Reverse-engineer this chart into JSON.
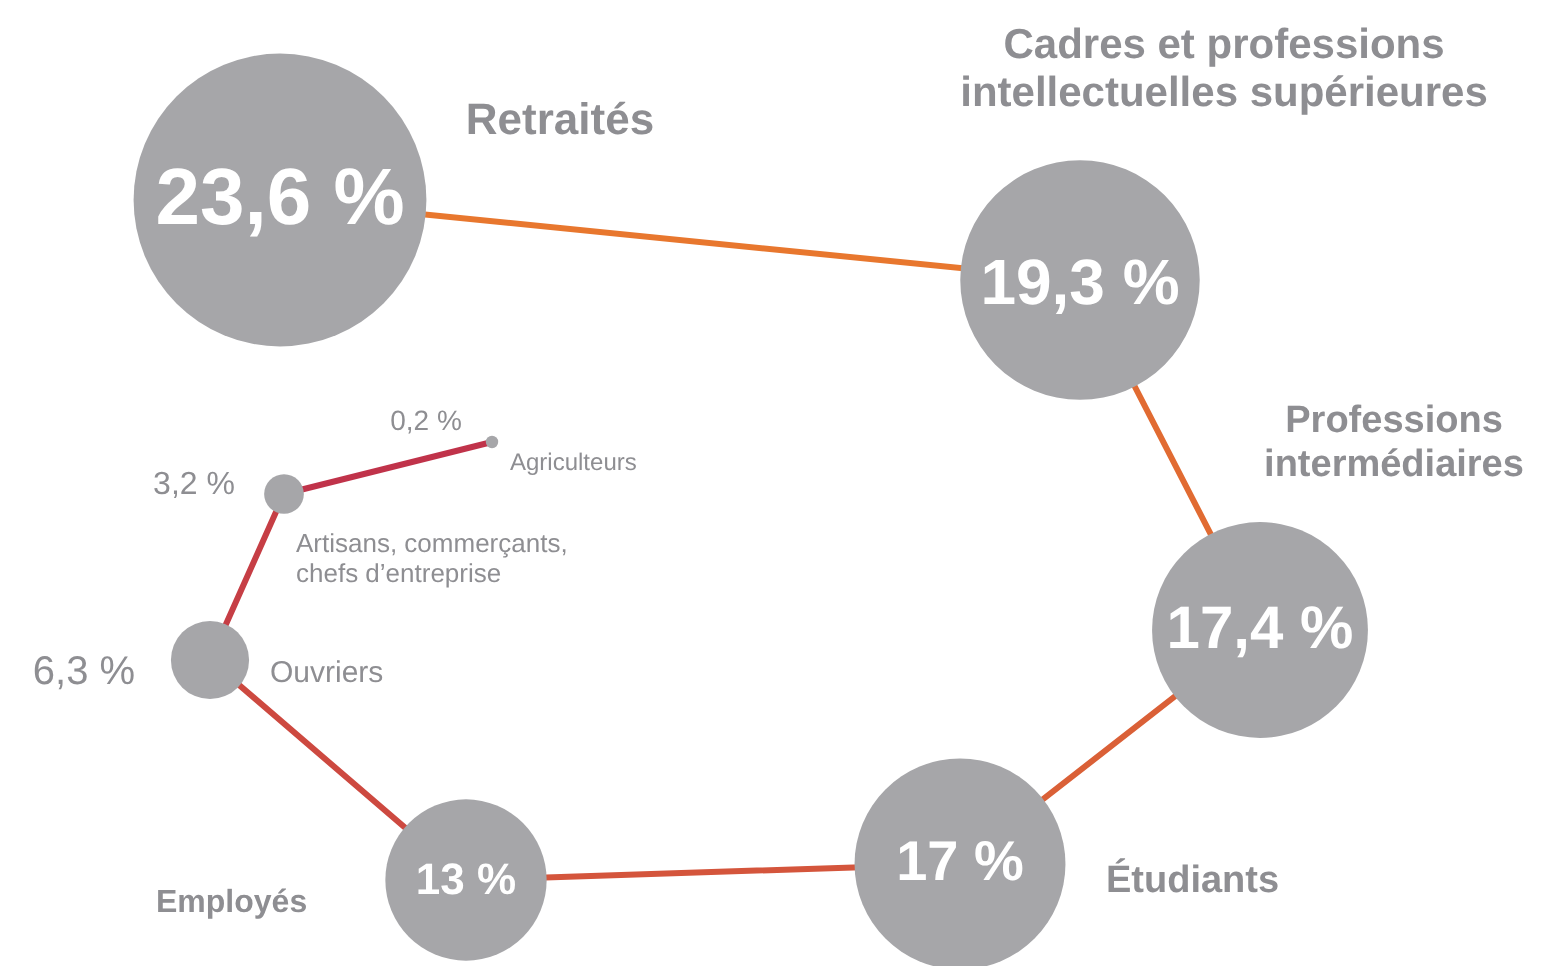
{
  "chart_data": {
    "type": "other",
    "categories": [
      "Agriculteurs",
      "Artisans, commerçants,\nchefs d’entreprise",
      "Ouvriers",
      "Employés",
      "Étudiants",
      "Professions\nintermédiaires",
      "Cadres et professions\nintellectuelles supérieures",
      "Retraités"
    ],
    "values": [
      0.2,
      3.2,
      6.3,
      13,
      17,
      17.4,
      19.3,
      23.6
    ],
    "value_labels": [
      "0,2 %",
      "3,2 %",
      "6,3 %",
      "13 %",
      "17 %",
      "17,4 %",
      "19,3 %",
      "23,6 %"
    ],
    "colors": [
      "#a6a6a9",
      "#a6a6a9",
      "#a6a6a9",
      "#a6a6a9",
      "#a6a6a9",
      "#a6a6a9",
      "#a6a6a9",
      "#a6a6a9"
    ]
  }
}
